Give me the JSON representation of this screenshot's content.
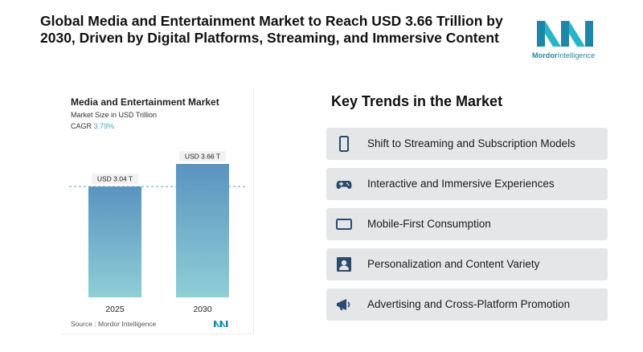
{
  "headline": "Global Media and Entertainment Market to Reach USD 3.66 Trillion by 2030, Driven by Digital Platforms, Streaming, and Immersive Content",
  "logo": {
    "brand_bold": "Mordor",
    "brand_light": "Intelligence"
  },
  "colors": {
    "accent": "#4aa6c6",
    "bar_top": "#5a93c0",
    "bar_bottom": "#8fcfd6",
    "trend_bg": "#e4e6e8",
    "icon": "#2c4a6b"
  },
  "chart_data": {
    "type": "bar",
    "title": "Media and Entertainment Market",
    "subtitle": "Market Size in USD Trillion",
    "cagr_label": "CAGR",
    "cagr_value": "3.79%",
    "categories": [
      "2025",
      "2030"
    ],
    "values": [
      3.04,
      3.66
    ],
    "value_labels": [
      "USD 3.04 T",
      "USD 3.66 T"
    ],
    "source": "Source : Mordor Intelligence"
  },
  "trends": {
    "title": "Key Trends in the Market",
    "items": [
      {
        "label": "Shift to Streaming and Subscription Models",
        "icon": "smartphone-icon"
      },
      {
        "label": "Interactive and Immersive Experiences",
        "icon": "gamepad-icon"
      },
      {
        "label": "Mobile-First Consumption",
        "icon": "screen-icon"
      },
      {
        "label": "Personalization and Content Variety",
        "icon": "user-icon"
      },
      {
        "label": "Advertising and Cross-Platform Promotion",
        "icon": "megaphone-icon"
      }
    ]
  }
}
